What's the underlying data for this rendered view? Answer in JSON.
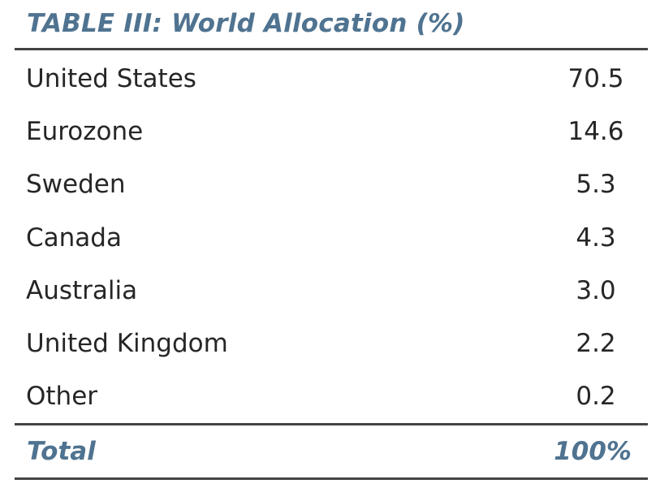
{
  "table": {
    "title": "TABLE III: World Allocation (%)",
    "rows": [
      {
        "label": "United States",
        "value": "70.5"
      },
      {
        "label": "Eurozone",
        "value": "14.6"
      },
      {
        "label": "Sweden",
        "value": "5.3"
      },
      {
        "label": "Canada",
        "value": "4.3"
      },
      {
        "label": "Australia",
        "value": "3.0"
      },
      {
        "label": "United Kingdom",
        "value": "2.2"
      },
      {
        "label": "Other",
        "value": "0.2"
      }
    ],
    "total": {
      "label": "Total",
      "value": "100%"
    }
  },
  "colors": {
    "accent": "#4f7390",
    "text": "#262626",
    "rule": "#444444"
  }
}
